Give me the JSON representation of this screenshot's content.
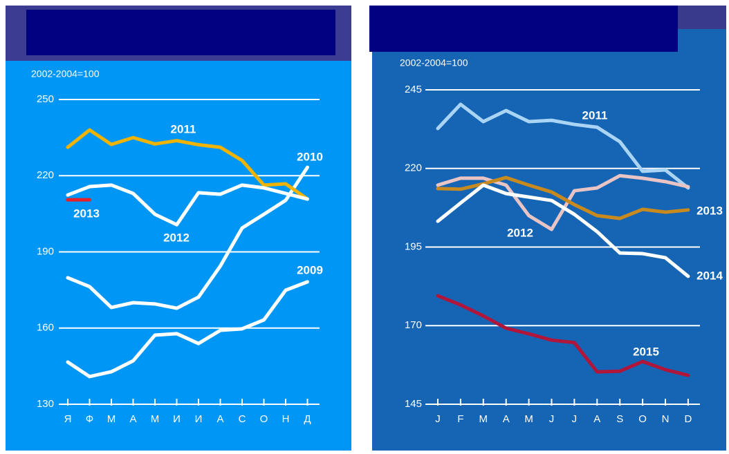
{
  "chart_data": [
    {
      "type": "line",
      "y_label": "2002-2004=100",
      "categories": [
        "Я",
        "Ф",
        "М",
        "А",
        "М",
        "И",
        "И",
        "А",
        "С",
        "О",
        "Н",
        "Д"
      ],
      "ylim": [
        130,
        250
      ],
      "yticks": [
        130,
        160,
        190,
        220,
        250
      ],
      "grid": true,
      "series": [
        {
          "name": "2009",
          "color": "#ffffff",
          "values": [
            146.6,
            140.9,
            142.8,
            147.1,
            157.2,
            157.8,
            153.9,
            159.1,
            159.7,
            163.2,
            174.9,
            178.2
          ]
        },
        {
          "name": "2010",
          "color": "#ffffff",
          "values": [
            179.8,
            176.3,
            168.1,
            170,
            169.5,
            167.8,
            172.2,
            184.4,
            199.4,
            204.8,
            210.3,
            223.3
          ]
        },
        {
          "name": "2011",
          "color": "#f0b400",
          "values": [
            231.2,
            238,
            232.3,
            235,
            232.5,
            233.8,
            232.2,
            231.2,
            226,
            216.3,
            216.8,
            210.8
          ]
        },
        {
          "name": "2012",
          "color": "#ffffff",
          "values": [
            212.4,
            215.7,
            216.3,
            213,
            204.8,
            200.7,
            213.3,
            212.7,
            216.3,
            215.2,
            213,
            210.8
          ]
        },
        {
          "name": "2013",
          "color": "#e8202a",
          "values": [
            210.5,
            210.5,
            null,
            null,
            null,
            null,
            null,
            null,
            null,
            null,
            null,
            null
          ]
        }
      ]
    },
    {
      "type": "line",
      "y_label": "2002-2004=100",
      "categories": [
        "J",
        "F",
        "M",
        "A",
        "M",
        "J",
        "J",
        "A",
        "S",
        "O",
        "N",
        "D"
      ],
      "ylim": [
        145,
        245
      ],
      "yticks": [
        145,
        170,
        195,
        220,
        245
      ],
      "grid": true,
      "series": [
        {
          "name": "2011",
          "color": "#a9d4f5",
          "values": [
            232.7,
            240.4,
            234.9,
            238.4,
            234.9,
            235.3,
            234,
            233.1,
            228.5,
            219.1,
            219.5,
            213.8
          ]
        },
        {
          "name": "2012",
          "color": "#e8c4c4",
          "values": [
            214.7,
            216.9,
            216.9,
            214.7,
            205,
            200.6,
            212.9,
            213.8,
            217.7,
            216.9,
            215.8,
            214.2
          ]
        },
        {
          "name": "2013",
          "color": "#c88a1e",
          "values": [
            213.6,
            213.4,
            215.1,
            217.1,
            214.7,
            212.5,
            208.5,
            205,
            204.1,
            207,
            206.1,
            206.8
          ]
        },
        {
          "name": "2014",
          "color": "#ffffff",
          "values": [
            203.2,
            209,
            214.7,
            212,
            210.9,
            209.8,
            205.4,
            199.9,
            193.1,
            192.9,
            191.6,
            185.7
          ]
        },
        {
          "name": "2015",
          "color": "#b0163a",
          "values": [
            179.5,
            176.6,
            173.1,
            169.2,
            167.4,
            165.4,
            164.6,
            155.3,
            155.5,
            158.6,
            156,
            154.2
          ]
        }
      ]
    }
  ]
}
